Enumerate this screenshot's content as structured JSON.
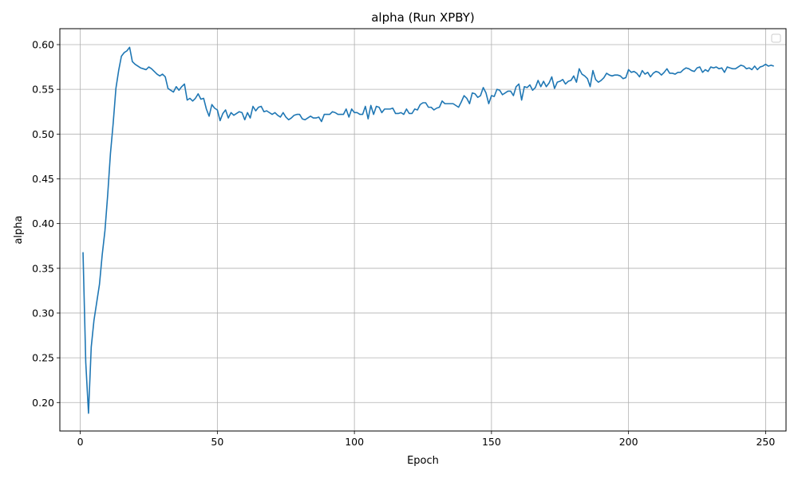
{
  "chart_data": {
    "type": "line",
    "title": "alpha (Run XPBY)",
    "xlabel": "Epoch",
    "ylabel": "alpha",
    "xlim": [
      -7.45,
      257.45
    ],
    "ylim": [
      0.1682,
      0.6178
    ],
    "xticks": [
      0,
      50,
      100,
      150,
      200,
      250
    ],
    "yticks": [
      0.2,
      0.25,
      0.3,
      0.35,
      0.4,
      0.45,
      0.5,
      0.55,
      0.6
    ],
    "grid": true,
    "legend": "top-right",
    "series_color": "#1f77b4",
    "series": [
      {
        "x_start": 1,
        "x_step": 1,
        "values": [
          0.368,
          0.245,
          0.188,
          0.262,
          0.292,
          0.312,
          0.332,
          0.365,
          0.392,
          0.432,
          0.478,
          0.512,
          0.551,
          0.571,
          0.587,
          0.591,
          0.593,
          0.597,
          0.581,
          0.578,
          0.576,
          0.574,
          0.573,
          0.572,
          0.575,
          0.573,
          0.57,
          0.567,
          0.565,
          0.567,
          0.564,
          0.551,
          0.549,
          0.547,
          0.553,
          0.549,
          0.553,
          0.556,
          0.538,
          0.54,
          0.537,
          0.54,
          0.545,
          0.539,
          0.54,
          0.528,
          0.52,
          0.533,
          0.529,
          0.527,
          0.515,
          0.523,
          0.527,
          0.518,
          0.524,
          0.521,
          0.523,
          0.525,
          0.524,
          0.516,
          0.524,
          0.518,
          0.531,
          0.526,
          0.53,
          0.531,
          0.525,
          0.526,
          0.524,
          0.522,
          0.524,
          0.521,
          0.519,
          0.524,
          0.519,
          0.516,
          0.518,
          0.521,
          0.522,
          0.522,
          0.517,
          0.516,
          0.518,
          0.52,
          0.518,
          0.518,
          0.519,
          0.514,
          0.522,
          0.522,
          0.522,
          0.525,
          0.524,
          0.522,
          0.522,
          0.522,
          0.528,
          0.519,
          0.528,
          0.524,
          0.524,
          0.522,
          0.522,
          0.531,
          0.517,
          0.532,
          0.522,
          0.531,
          0.53,
          0.524,
          0.528,
          0.528,
          0.528,
          0.529,
          0.523,
          0.523,
          0.524,
          0.522,
          0.528,
          0.523,
          0.523,
          0.528,
          0.527,
          0.533,
          0.535,
          0.535,
          0.53,
          0.53,
          0.527,
          0.529,
          0.53,
          0.537,
          0.534,
          0.534,
          0.534,
          0.534,
          0.532,
          0.53,
          0.536,
          0.543,
          0.54,
          0.534,
          0.546,
          0.545,
          0.541,
          0.543,
          0.552,
          0.546,
          0.534,
          0.543,
          0.542,
          0.55,
          0.549,
          0.544,
          0.546,
          0.548,
          0.548,
          0.543,
          0.553,
          0.556,
          0.538,
          0.553,
          0.552,
          0.555,
          0.549,
          0.552,
          0.56,
          0.553,
          0.559,
          0.553,
          0.557,
          0.564,
          0.551,
          0.558,
          0.559,
          0.561,
          0.556,
          0.559,
          0.56,
          0.565,
          0.558,
          0.573,
          0.567,
          0.565,
          0.562,
          0.553,
          0.571,
          0.561,
          0.558,
          0.56,
          0.563,
          0.568,
          0.566,
          0.565,
          0.566,
          0.566,
          0.565,
          0.562,
          0.563,
          0.572,
          0.569,
          0.57,
          0.568,
          0.564,
          0.571,
          0.567,
          0.569,
          0.564,
          0.568,
          0.57,
          0.569,
          0.566,
          0.569,
          0.573,
          0.568,
          0.568,
          0.567,
          0.569,
          0.569,
          0.572,
          0.574,
          0.573,
          0.571,
          0.57,
          0.574,
          0.575,
          0.569,
          0.572,
          0.57,
          0.575,
          0.574,
          0.575,
          0.573,
          0.574,
          0.569,
          0.575,
          0.574,
          0.573,
          0.573,
          0.575,
          0.577,
          0.576,
          0.573,
          0.574,
          0.572,
          0.576,
          0.572,
          0.575,
          0.576,
          0.578,
          0.576,
          0.577,
          0.576
        ]
      }
    ]
  }
}
